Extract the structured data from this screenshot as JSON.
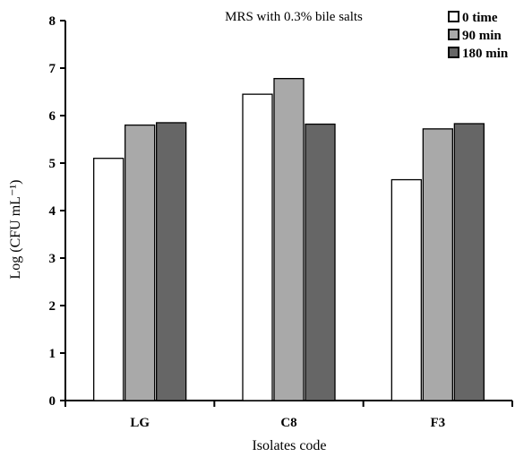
{
  "chart_data": {
    "type": "bar",
    "title": "MRS with 0.3% bile salts",
    "xlabel": "Isolates code",
    "ylabel": "Log (CFU mL⁻¹)",
    "categories": [
      "LG",
      "C8",
      "F3"
    ],
    "ylim": [
      0,
      8
    ],
    "yticks": [
      0,
      1,
      2,
      3,
      4,
      5,
      6,
      7,
      8
    ],
    "grid": false,
    "legend_position": "top-right",
    "series": [
      {
        "name": "0 time",
        "values": [
          5.1,
          6.45,
          4.65
        ],
        "color": "#ffffff"
      },
      {
        "name": "90 min",
        "values": [
          5.8,
          6.78,
          5.72
        ],
        "color": "#a9a9a9"
      },
      {
        "name": "180 min",
        "values": [
          5.85,
          5.82,
          5.83
        ],
        "color": "#666666"
      }
    ]
  }
}
